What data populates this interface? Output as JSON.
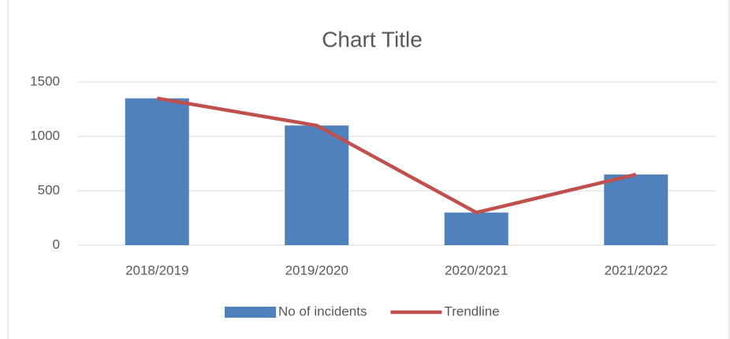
{
  "chart_data": {
    "type": "bar",
    "title": "Chart Title",
    "categories": [
      "2018/2019",
      "2019/2020",
      "2020/2021",
      "2021/2022"
    ],
    "series": [
      {
        "name": "No of incidents",
        "type": "bar",
        "color": "#4f81bd",
        "values": [
          1350,
          1100,
          300,
          650
        ]
      },
      {
        "name": "Trendline",
        "type": "line",
        "color": "#c0504d",
        "values": [
          1350,
          1100,
          300,
          650
        ]
      }
    ],
    "ylim": [
      0,
      1500
    ],
    "yticks": [
      0,
      500,
      1000,
      1500
    ],
    "grid": true,
    "legend": "bottom"
  }
}
